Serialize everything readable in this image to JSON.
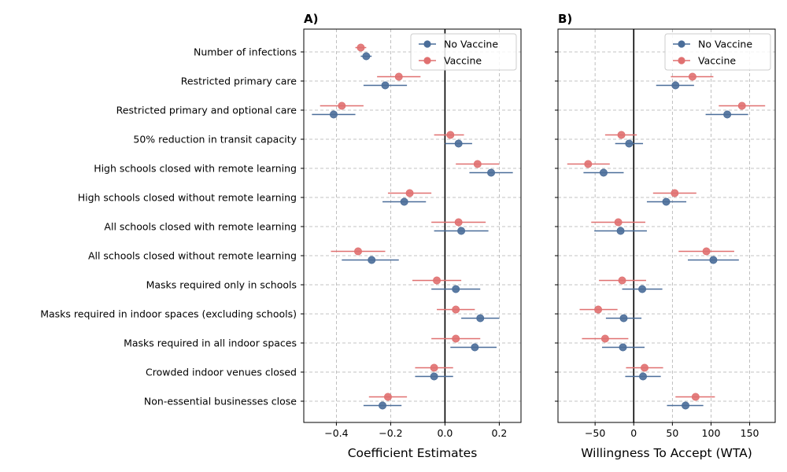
{
  "colors": {
    "no_vaccine": "#4a6d99",
    "vaccine": "#e07070"
  },
  "chart_data": [
    {
      "type": "scatter",
      "panel_label": "A)",
      "xlabel": "Coefficient Estimates",
      "xlim": [
        -0.52,
        0.28
      ],
      "xticks": [
        -0.4,
        -0.2,
        0.0,
        0.2
      ],
      "xtick_labels": [
        "−0.4",
        "−0.2",
        "0.0",
        "0.2"
      ],
      "grid": true,
      "zero_line": 0,
      "legend": "top-right",
      "categories": [
        "Number of infections",
        "Restricted primary care",
        "Restricted primary and optional care",
        "50% reduction in transit capacity",
        "High schools closed with remote learning",
        "High schools closed without remote learning",
        "All schools closed with remote learning",
        "All schools closed without remote learning",
        "Masks required only in schools",
        "Masks required in indoor spaces (excluding schools)",
        "Masks required in all indoor spaces",
        "Crowded indoor venues closed",
        "Non-essential businesses close"
      ],
      "series": [
        {
          "name": "No Vaccine",
          "values": [
            -0.29,
            -0.22,
            -0.41,
            0.05,
            0.17,
            -0.15,
            0.06,
            -0.27,
            0.04,
            0.13,
            0.11,
            -0.04,
            -0.23
          ],
          "lower": [
            -0.31,
            -0.3,
            -0.49,
            0.0,
            0.09,
            -0.23,
            -0.04,
            -0.38,
            -0.05,
            0.06,
            0.02,
            -0.11,
            -0.3
          ],
          "upper": [
            -0.27,
            -0.14,
            -0.33,
            0.1,
            0.25,
            -0.07,
            0.16,
            -0.17,
            0.13,
            0.2,
            0.19,
            0.03,
            -0.16
          ]
        },
        {
          "name": "Vaccine",
          "values": [
            -0.31,
            -0.17,
            -0.38,
            0.02,
            0.12,
            -0.13,
            0.05,
            -0.32,
            -0.03,
            0.04,
            0.04,
            -0.04,
            -0.21
          ],
          "lower": [
            -0.33,
            -0.25,
            -0.46,
            -0.04,
            0.04,
            -0.21,
            -0.05,
            -0.42,
            -0.12,
            -0.03,
            -0.05,
            -0.11,
            -0.28
          ],
          "upper": [
            -0.29,
            -0.09,
            -0.3,
            0.07,
            0.2,
            -0.05,
            0.15,
            -0.22,
            0.06,
            0.11,
            0.13,
            0.03,
            -0.14
          ]
        }
      ]
    },
    {
      "type": "scatter",
      "panel_label": "B)",
      "xlabel": "Willingness To Accept (WTA)",
      "xlim": [
        -98,
        183
      ],
      "xticks": [
        -50,
        0,
        50,
        100,
        150
      ],
      "xtick_labels": [
        "−50",
        "0",
        "50",
        "100",
        "150"
      ],
      "grid": true,
      "zero_line": 0,
      "legend": "top-right",
      "series": [
        {
          "name": "No Vaccine",
          "values": [
            null,
            54,
            121,
            -6,
            -39,
            42,
            -17,
            103,
            11,
            -13,
            -14,
            12,
            67
          ],
          "lower": [
            null,
            29,
            93,
            -24,
            -65,
            17,
            -51,
            70,
            -15,
            -36,
            -41,
            -11,
            43
          ],
          "upper": [
            null,
            78,
            148,
            12,
            -13,
            68,
            17,
            136,
            37,
            10,
            14,
            35,
            90
          ]
        },
        {
          "name": "Vaccine",
          "values": [
            null,
            76,
            140,
            -16,
            -59,
            53,
            -20,
            94,
            -15,
            -46,
            -37,
            14,
            80
          ],
          "lower": [
            null,
            48,
            110,
            -37,
            -86,
            25,
            -55,
            58,
            -45,
            -70,
            -67,
            -10,
            54
          ],
          "upper": [
            null,
            103,
            170,
            4,
            -31,
            81,
            15,
            130,
            16,
            -21,
            -7,
            38,
            105
          ]
        }
      ]
    }
  ]
}
